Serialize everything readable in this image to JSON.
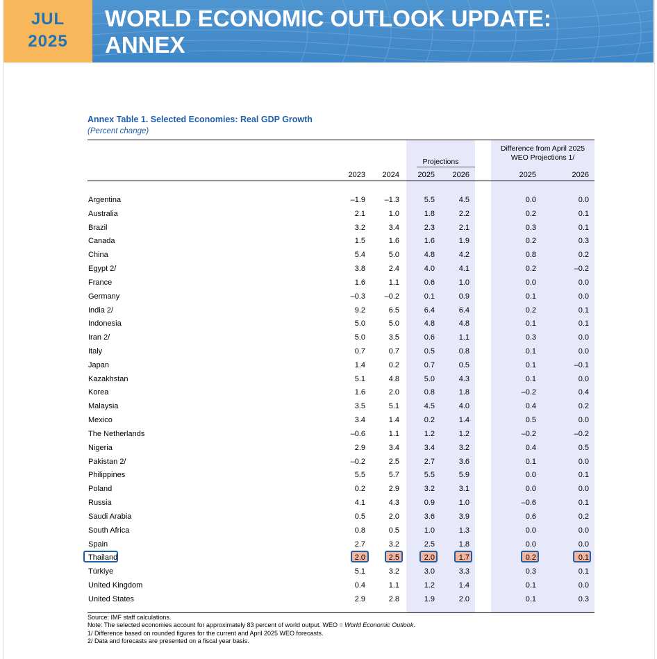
{
  "header": {
    "month": "JUL",
    "year": "2025",
    "title_line1": "WORLD ECONOMIC OUTLOOK UPDATE:",
    "title_line2": "ANNEX"
  },
  "table": {
    "title": "Annex Table 1. Selected Economies: Real GDP Growth",
    "subtitle": "(Percent change)",
    "projections_label": "Projections",
    "difference_label_line1": "Difference from April 2025",
    "difference_label_line2": "WEO Projections 1/",
    "years": [
      "2023",
      "2024",
      "2025",
      "2026",
      "2025",
      "2026"
    ],
    "highlighted_row": "Thailand",
    "rows": [
      {
        "name": "Argentina",
        "values": [
          "–1.9",
          "–1.3",
          "5.5",
          "4.5",
          "0.0",
          "0.0"
        ]
      },
      {
        "name": "Australia",
        "values": [
          "2.1",
          "1.0",
          "1.8",
          "2.2",
          "0.2",
          "0.1"
        ]
      },
      {
        "name": "Brazil",
        "values": [
          "3.2",
          "3.4",
          "2.3",
          "2.1",
          "0.3",
          "0.1"
        ]
      },
      {
        "name": "Canada",
        "values": [
          "1.5",
          "1.6",
          "1.6",
          "1.9",
          "0.2",
          "0.3"
        ]
      },
      {
        "name": "China",
        "values": [
          "5.4",
          "5.0",
          "4.8",
          "4.2",
          "0.8",
          "0.2"
        ]
      },
      {
        "name": "Egypt 2/",
        "values": [
          "3.8",
          "2.4",
          "4.0",
          "4.1",
          "0.2",
          "–0.2"
        ]
      },
      {
        "name": "France",
        "values": [
          "1.6",
          "1.1",
          "0.6",
          "1.0",
          "0.0",
          "0.0"
        ]
      },
      {
        "name": "Germany",
        "values": [
          "–0.3",
          "–0.2",
          "0.1",
          "0.9",
          "0.1",
          "0.0"
        ]
      },
      {
        "name": "India 2/",
        "values": [
          "9.2",
          "6.5",
          "6.4",
          "6.4",
          "0.2",
          "0.1"
        ]
      },
      {
        "name": "Indonesia",
        "values": [
          "5.0",
          "5.0",
          "4.8",
          "4.8",
          "0.1",
          "0.1"
        ]
      },
      {
        "name": "Iran 2/",
        "values": [
          "5.0",
          "3.5",
          "0.6",
          "1.1",
          "0.3",
          "0.0"
        ]
      },
      {
        "name": "Italy",
        "values": [
          "0.7",
          "0.7",
          "0.5",
          "0.8",
          "0.1",
          "0.0"
        ]
      },
      {
        "name": "Japan",
        "values": [
          "1.4",
          "0.2",
          "0.7",
          "0.5",
          "0.1",
          "–0.1"
        ]
      },
      {
        "name": "Kazakhstan",
        "values": [
          "5.1",
          "4.8",
          "5.0",
          "4.3",
          "0.1",
          "0.0"
        ]
      },
      {
        "name": "Korea",
        "values": [
          "1.6",
          "2.0",
          "0.8",
          "1.8",
          "–0.2",
          "0.4"
        ]
      },
      {
        "name": "Malaysia",
        "values": [
          "3.5",
          "5.1",
          "4.5",
          "4.0",
          "0.4",
          "0.2"
        ]
      },
      {
        "name": "Mexico",
        "values": [
          "3.4",
          "1.4",
          "0.2",
          "1.4",
          "0.5",
          "0.0"
        ]
      },
      {
        "name": "The Netherlands",
        "values": [
          "–0.6",
          "1.1",
          "1.2",
          "1.2",
          "–0.2",
          "–0.2"
        ]
      },
      {
        "name": "Nigeria",
        "values": [
          "2.9",
          "3.4",
          "3.4",
          "3.2",
          "0.4",
          "0.5"
        ]
      },
      {
        "name": "Pakistan 2/",
        "values": [
          "–0.2",
          "2.5",
          "2.7",
          "3.6",
          "0.1",
          "0.0"
        ]
      },
      {
        "name": "Philippines",
        "values": [
          "5.5",
          "5.7",
          "5.5",
          "5.9",
          "0.0",
          "0.1"
        ]
      },
      {
        "name": "Poland",
        "values": [
          "0.2",
          "2.9",
          "3.2",
          "3.1",
          "0.0",
          "0.0"
        ]
      },
      {
        "name": "Russia",
        "values": [
          "4.1",
          "4.3",
          "0.9",
          "1.0",
          "–0.6",
          "0.1"
        ]
      },
      {
        "name": "Saudi Arabia",
        "values": [
          "0.5",
          "2.0",
          "3.6",
          "3.9",
          "0.6",
          "0.2"
        ]
      },
      {
        "name": "South Africa",
        "values": [
          "0.8",
          "0.5",
          "1.0",
          "1.3",
          "0.0",
          "0.0"
        ]
      },
      {
        "name": "Spain",
        "values": [
          "2.7",
          "3.2",
          "2.5",
          "1.8",
          "0.0",
          "0.0"
        ]
      },
      {
        "name": "Thailand",
        "values": [
          "2.0",
          "2.5",
          "2.0",
          "1.7",
          "0.2",
          "0.1"
        ]
      },
      {
        "name": "Türkiye",
        "values": [
          "5.1",
          "3.2",
          "3.0",
          "3.3",
          "0.3",
          "0.1"
        ]
      },
      {
        "name": "United Kingdom",
        "values": [
          "0.4",
          "1.1",
          "1.2",
          "1.4",
          "0.1",
          "0.0"
        ]
      },
      {
        "name": "United States",
        "values": [
          "2.9",
          "2.8",
          "1.9",
          "2.0",
          "0.1",
          "0.3"
        ]
      }
    ]
  },
  "notes": {
    "source": "Source: IMF staff calculations.",
    "note_prefix": "Note: The selected economies account for approximately 83 percent of world output. WEO = ",
    "note_italic": "World Economic Outlook",
    "note_suffix": ".",
    "footnote1": "1/ Difference based on rounded figures for the current and April 2025 WEO forecasts.",
    "footnote2": "2/ Data and forecasts are presented on a fiscal year basis."
  },
  "colors": {
    "accent_orange": "#f7b75a",
    "banner_blue": "#4a90cd",
    "title_blue": "#1f5ea8",
    "projection_shade": "#e8e8fb",
    "highlight_fill": "#f5b59c"
  }
}
